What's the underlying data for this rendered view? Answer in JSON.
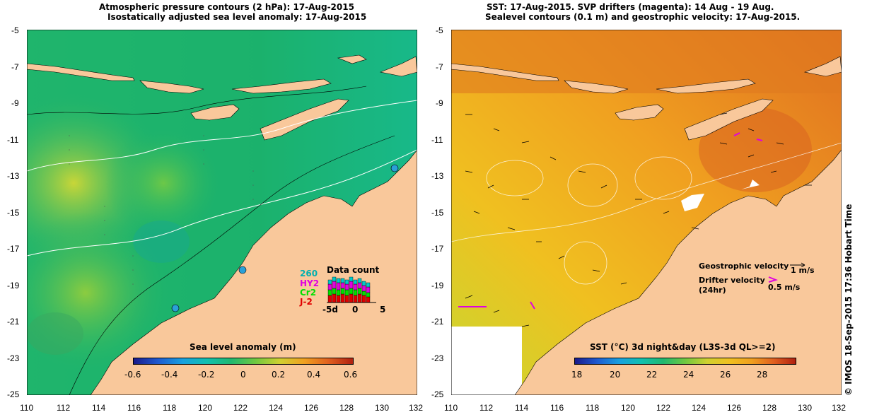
{
  "left_panel": {
    "title_line1": "Atmospheric pressure contours (2 hPa): 17-Aug-2015",
    "title_line2": "Isostatically adjusted sea level anomaly: 17-Aug-2015",
    "colorbar_title": "Sea level anomaly (m)",
    "colorbar_ticks": [
      "-0.6",
      "-0.4",
      "-0.2",
      "0",
      "0.2",
      "0.4",
      "0.6"
    ],
    "data_count": {
      "title": "Data count",
      "missions": [
        {
          "name": "260",
          "color": "#00c8c8"
        },
        {
          "name": "HY2",
          "color": "#e000e0"
        },
        {
          "name": "Cr2",
          "color": "#00e000"
        },
        {
          "name": "J-2",
          "color": "#e00000"
        }
      ],
      "x_ticks": [
        "-5d",
        "0",
        "5"
      ]
    }
  },
  "right_panel": {
    "title_line1": "SST: 17-Aug-2015. SVP drifters (magenta): 14 Aug - 19 Aug.",
    "title_line2": "Sealevel contours (0.1 m) and geostrophic velocity: 17-Aug-2015.",
    "colorbar_title": "SST (°C) 3d night&day (L3S-3d QL>=2)",
    "colorbar_ticks": [
      "18",
      "20",
      "22",
      "24",
      "26",
      "28"
    ],
    "legend": {
      "geostrophic_label": "Geostrophic velocity",
      "geostrophic_scale": "1 m/s",
      "drifter_label_1": "Drifter velocity",
      "drifter_label_2": "(24hr)",
      "drifter_scale": "0.5 m/s"
    }
  },
  "axes": {
    "lon_ticks": [
      "110",
      "112",
      "114",
      "116",
      "118",
      "120",
      "122",
      "124",
      "126",
      "128",
      "130",
      "132"
    ],
    "lat_ticks": [
      "-5",
      "-7",
      "-9",
      "-11",
      "-13",
      "-15",
      "-17",
      "-19",
      "-21",
      "-23",
      "-25"
    ]
  },
  "credit": "© IMOS 18-Sep-2015 17:36 Hobart Time",
  "colors": {
    "land": "#f9c89b",
    "ocean_left": "#1fb36a",
    "ocean_right": "#f0a020"
  }
}
